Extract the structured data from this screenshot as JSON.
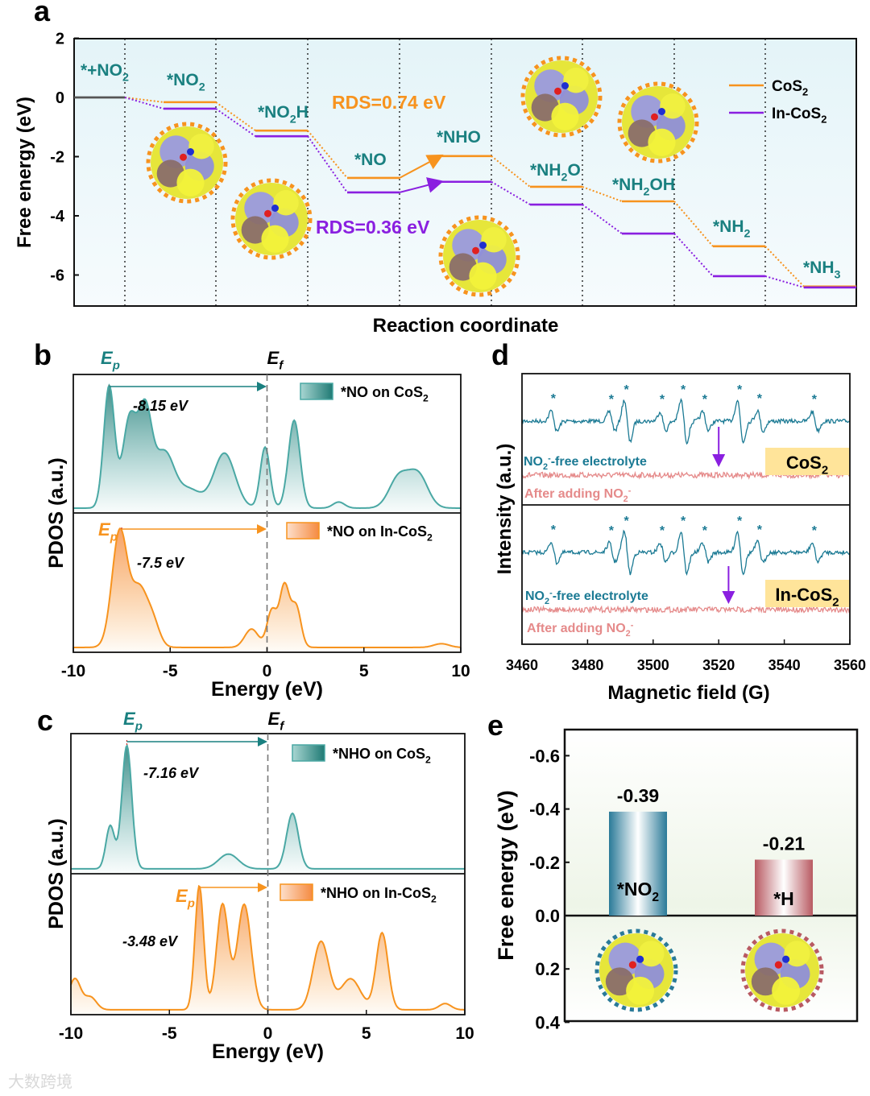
{
  "colors": {
    "teal": "#1a8080",
    "teal_curve": "#4aa8a4",
    "orange": "#f7931e",
    "purple": "#8a1fe0",
    "epr_teal": "#1b7a94",
    "epr_pink": "#e58a8a",
    "ep_marker": "#d0312d",
    "bar_no2": "#2a7a98",
    "bar_h": "#b85a62"
  },
  "watermark": "大数跨境",
  "chart_data": [
    {
      "panel": "a",
      "type": "line",
      "title": "",
      "ylabel": "Free energy (eV)",
      "xlabel": "Reaction coordinate",
      "ylim": [
        -7,
        2
      ],
      "yticks": [
        2,
        0,
        -2,
        -4,
        -6
      ],
      "steps": [
        "*+NO_2",
        "*NO_2",
        "*NO_2H",
        "*NO",
        "*NHO",
        "*NH_2O",
        "*NH_2OH",
        "*NH_2",
        "*NH_3"
      ],
      "series": [
        {
          "name": "CoS_2",
          "color": "#f7931e",
          "values": [
            0,
            -0.16,
            -1.12,
            -2.72,
            -1.98,
            -3.02,
            -3.51,
            -5.03,
            -6.39
          ]
        },
        {
          "name": "In-CoS_2",
          "color": "#8a1fe0",
          "values": [
            0,
            -0.38,
            -1.31,
            -3.21,
            -2.85,
            -3.62,
            -4.6,
            -6.04,
            -6.42
          ]
        }
      ],
      "annotations": [
        "RDS=0.74 eV",
        "RDS=0.36 eV"
      ],
      "legend": "top-right"
    },
    {
      "panel": "b",
      "type": "area",
      "xlabel": "Energy (eV)",
      "ylabel": "PDOS (a.u.)",
      "xlim": [
        -10,
        10
      ],
      "xticks": [
        -10,
        -5,
        0,
        5,
        10
      ],
      "ep_label": "E_p",
      "ef_label": "E_f",
      "series": [
        {
          "name": "*NO on CoS_2",
          "ep": -8.15,
          "ep_text": "-8.15 eV",
          "color": "#4aa8a4",
          "peaks": [
            [
              -8.15,
              1,
              0.28
            ],
            [
              -7.1,
              0.72,
              0.35
            ],
            [
              -6.3,
              0.78,
              0.35
            ],
            [
              -5.3,
              0.45,
              0.5
            ],
            [
              -4,
              0.15,
              0.6
            ],
            [
              -2.2,
              0.45,
              0.55
            ],
            [
              -0.1,
              0.5,
              0.25
            ],
            [
              1.4,
              0.72,
              0.3
            ],
            [
              3.7,
              0.05,
              0.3
            ],
            [
              6.8,
              0.25,
              0.5
            ],
            [
              7.8,
              0.27,
              0.5
            ]
          ]
        },
        {
          "name": "*NO on In-CoS_2",
          "ep": -7.5,
          "ep_text": "-7.5 eV",
          "color": "#f7931e",
          "peaks": [
            [
              -7.6,
              0.95,
              0.4
            ],
            [
              -6.6,
              0.45,
              0.4
            ],
            [
              -5.9,
              0.2,
              0.35
            ],
            [
              -0.8,
              0.15,
              0.35
            ],
            [
              0.25,
              0.3,
              0.25
            ],
            [
              0.9,
              0.5,
              0.25
            ],
            [
              1.5,
              0.33,
              0.25
            ],
            [
              9,
              0.03,
              0.4
            ]
          ]
        }
      ]
    },
    {
      "panel": "c",
      "type": "area",
      "xlabel": "Energy (eV)",
      "ylabel": "PDOS (a.u.)",
      "xlim": [
        -10,
        10
      ],
      "xticks": [
        -10,
        -5,
        0,
        5,
        10
      ],
      "ep_label": "E_p",
      "ef_label": "E_f",
      "series": [
        {
          "name": "*NHO on CoS_2",
          "ep": -7.16,
          "ep_text": "-7.16 eV",
          "color": "#4aa8a4",
          "peaks": [
            [
              -8,
              0.35,
              0.22
            ],
            [
              -7.16,
              1,
              0.25
            ],
            [
              -2,
              0.12,
              0.5
            ],
            [
              1.25,
              0.45,
              0.3
            ]
          ]
        },
        {
          "name": "*NHO on In-CoS_2",
          "ep": -3.48,
          "ep_text": "-3.48 eV",
          "color": "#f7931e",
          "peaks": [
            [
              -9.8,
              0.25,
              0.3
            ],
            [
              -9,
              0.1,
              0.3
            ],
            [
              -3.48,
              1,
              0.22
            ],
            [
              -2.3,
              0.85,
              0.3
            ],
            [
              -1.2,
              0.85,
              0.35
            ],
            [
              2.7,
              0.55,
              0.4
            ],
            [
              4.2,
              0.25,
              0.5
            ],
            [
              5.8,
              0.62,
              0.3
            ],
            [
              9,
              0.05,
              0.3
            ]
          ]
        }
      ]
    },
    {
      "panel": "d",
      "type": "line",
      "xlabel": "Magnetic field (G)",
      "ylabel": "Intensity (a.u.)",
      "xlim": [
        3460,
        3560
      ],
      "xticks": [
        3460,
        3480,
        3500,
        3520,
        3540,
        3560
      ],
      "peak_fields": [
        3469.8,
        3487.5,
        3492.1,
        3503,
        3509.4,
        3516,
        3526.6,
        3532.7,
        3549.4
      ],
      "peak_amps": [
        0.5,
        0.45,
        1,
        0.45,
        1,
        0.45,
        1,
        0.5,
        0.45
      ],
      "marker": "*",
      "subpanels": [
        {
          "badge": "CoS_2",
          "label_free": "NO_2^--free electrolyte",
          "label_added": "After adding NO_2^-",
          "arrow_field": 3520
        },
        {
          "badge": "In-CoS_2",
          "label_free": "NO_2^--free electrolyte",
          "label_added": "After adding NO_2^-",
          "arrow_field": 3523
        }
      ]
    },
    {
      "panel": "e",
      "type": "bar",
      "ylabel": "Free energy (eV)",
      "ylim": [
        0.4,
        -0.6
      ],
      "yticks": [
        -0.6,
        -0.4,
        -0.2,
        0.0,
        0.2,
        0.4
      ],
      "ytick_labels": [
        "-0.6",
        "-0.4",
        "-0.2",
        "0.0",
        "0.2",
        "0.4"
      ],
      "categories": [
        "*NO_2",
        "*H"
      ],
      "values": [
        -0.39,
        -0.21
      ],
      "value_labels": [
        "-0.39",
        "-0.21"
      ]
    }
  ],
  "panel_letters": [
    "a",
    "b",
    "c",
    "d",
    "e"
  ]
}
